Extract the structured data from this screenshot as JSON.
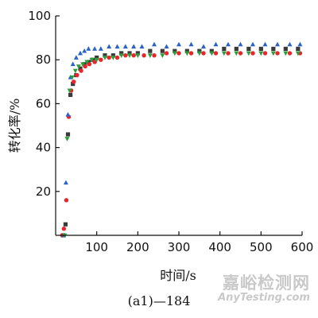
{
  "chart_data": {
    "type": "scatter",
    "title": "",
    "xlabel": "时间/s",
    "ylabel": "转化率/%",
    "xlim": [
      0,
      600
    ],
    "ylim": [
      0,
      100
    ],
    "xticks": [
      100,
      200,
      300,
      400,
      500,
      600
    ],
    "yticks": [
      20,
      40,
      60,
      80,
      100
    ],
    "grid": false,
    "legend": "none",
    "series": [
      {
        "marker": "square",
        "color": "#3a3a3a",
        "points": [
          [
            18,
            0
          ],
          [
            24,
            5
          ],
          [
            30,
            46
          ],
          [
            36,
            64
          ],
          [
            42,
            69
          ],
          [
            50,
            73
          ],
          [
            60,
            76
          ],
          [
            70,
            78
          ],
          [
            80,
            79
          ],
          [
            90,
            80
          ],
          [
            100,
            81
          ],
          [
            120,
            82
          ],
          [
            140,
            82
          ],
          [
            160,
            83
          ],
          [
            180,
            83
          ],
          [
            200,
            83
          ],
          [
            230,
            84
          ],
          [
            260,
            84
          ],
          [
            290,
            84
          ],
          [
            320,
            84
          ],
          [
            350,
            84
          ],
          [
            380,
            84
          ],
          [
            410,
            85
          ],
          [
            440,
            85
          ],
          [
            470,
            85
          ],
          [
            500,
            85
          ],
          [
            530,
            85
          ],
          [
            560,
            85
          ],
          [
            590,
            85
          ]
        ]
      },
      {
        "marker": "circle",
        "color": "#e8262a",
        "points": [
          [
            16,
            0
          ],
          [
            20,
            3
          ],
          [
            26,
            16
          ],
          [
            32,
            54
          ],
          [
            38,
            66
          ],
          [
            44,
            70
          ],
          [
            52,
            73
          ],
          [
            62,
            75
          ],
          [
            72,
            77
          ],
          [
            82,
            78
          ],
          [
            95,
            79
          ],
          [
            110,
            80
          ],
          [
            130,
            81
          ],
          [
            150,
            81
          ],
          [
            170,
            82
          ],
          [
            190,
            82
          ],
          [
            215,
            82
          ],
          [
            240,
            82
          ],
          [
            270,
            83
          ],
          [
            300,
            83
          ],
          [
            330,
            83
          ],
          [
            360,
            83
          ],
          [
            390,
            83
          ],
          [
            420,
            83
          ],
          [
            450,
            83
          ],
          [
            480,
            83
          ],
          [
            510,
            83
          ],
          [
            540,
            83
          ],
          [
            570,
            83
          ],
          [
            595,
            83
          ]
        ]
      },
      {
        "marker": "triangle-up",
        "color": "#2a63c9",
        "points": [
          [
            20,
            0
          ],
          [
            25,
            24
          ],
          [
            30,
            55
          ],
          [
            36,
            72
          ],
          [
            42,
            78
          ],
          [
            50,
            81
          ],
          [
            60,
            83
          ],
          [
            70,
            84
          ],
          [
            80,
            85
          ],
          [
            95,
            85
          ],
          [
            110,
            85
          ],
          [
            130,
            86
          ],
          [
            150,
            86
          ],
          [
            170,
            86
          ],
          [
            190,
            86
          ],
          [
            210,
            86
          ],
          [
            240,
            87
          ],
          [
            270,
            86
          ],
          [
            300,
            87
          ],
          [
            330,
            87
          ],
          [
            360,
            86
          ],
          [
            390,
            87
          ],
          [
            420,
            87
          ],
          [
            450,
            87
          ],
          [
            480,
            87
          ],
          [
            510,
            87
          ],
          [
            540,
            87
          ],
          [
            570,
            87
          ],
          [
            595,
            87
          ]
        ]
      },
      {
        "marker": "triangle-down",
        "color": "#2a9d3c",
        "points": [
          [
            22,
            0
          ],
          [
            28,
            44
          ],
          [
            34,
            66
          ],
          [
            40,
            72
          ],
          [
            48,
            75
          ],
          [
            56,
            77
          ],
          [
            66,
            78
          ],
          [
            76,
            79
          ],
          [
            88,
            80
          ],
          [
            100,
            80
          ],
          [
            120,
            81
          ],
          [
            140,
            81
          ],
          [
            160,
            82
          ],
          [
            180,
            82
          ],
          [
            200,
            82
          ],
          [
            230,
            82
          ],
          [
            260,
            82
          ],
          [
            290,
            83
          ],
          [
            320,
            83
          ],
          [
            350,
            83
          ],
          [
            380,
            83
          ],
          [
            410,
            83
          ],
          [
            440,
            83
          ],
          [
            470,
            83
          ],
          [
            500,
            83
          ],
          [
            530,
            83
          ],
          [
            560,
            83
          ],
          [
            590,
            83
          ]
        ]
      }
    ]
  },
  "caption": "(a1)—184",
  "watermark": {
    "cn": "嘉峪检测网",
    "en": "AnyTesting.com"
  }
}
